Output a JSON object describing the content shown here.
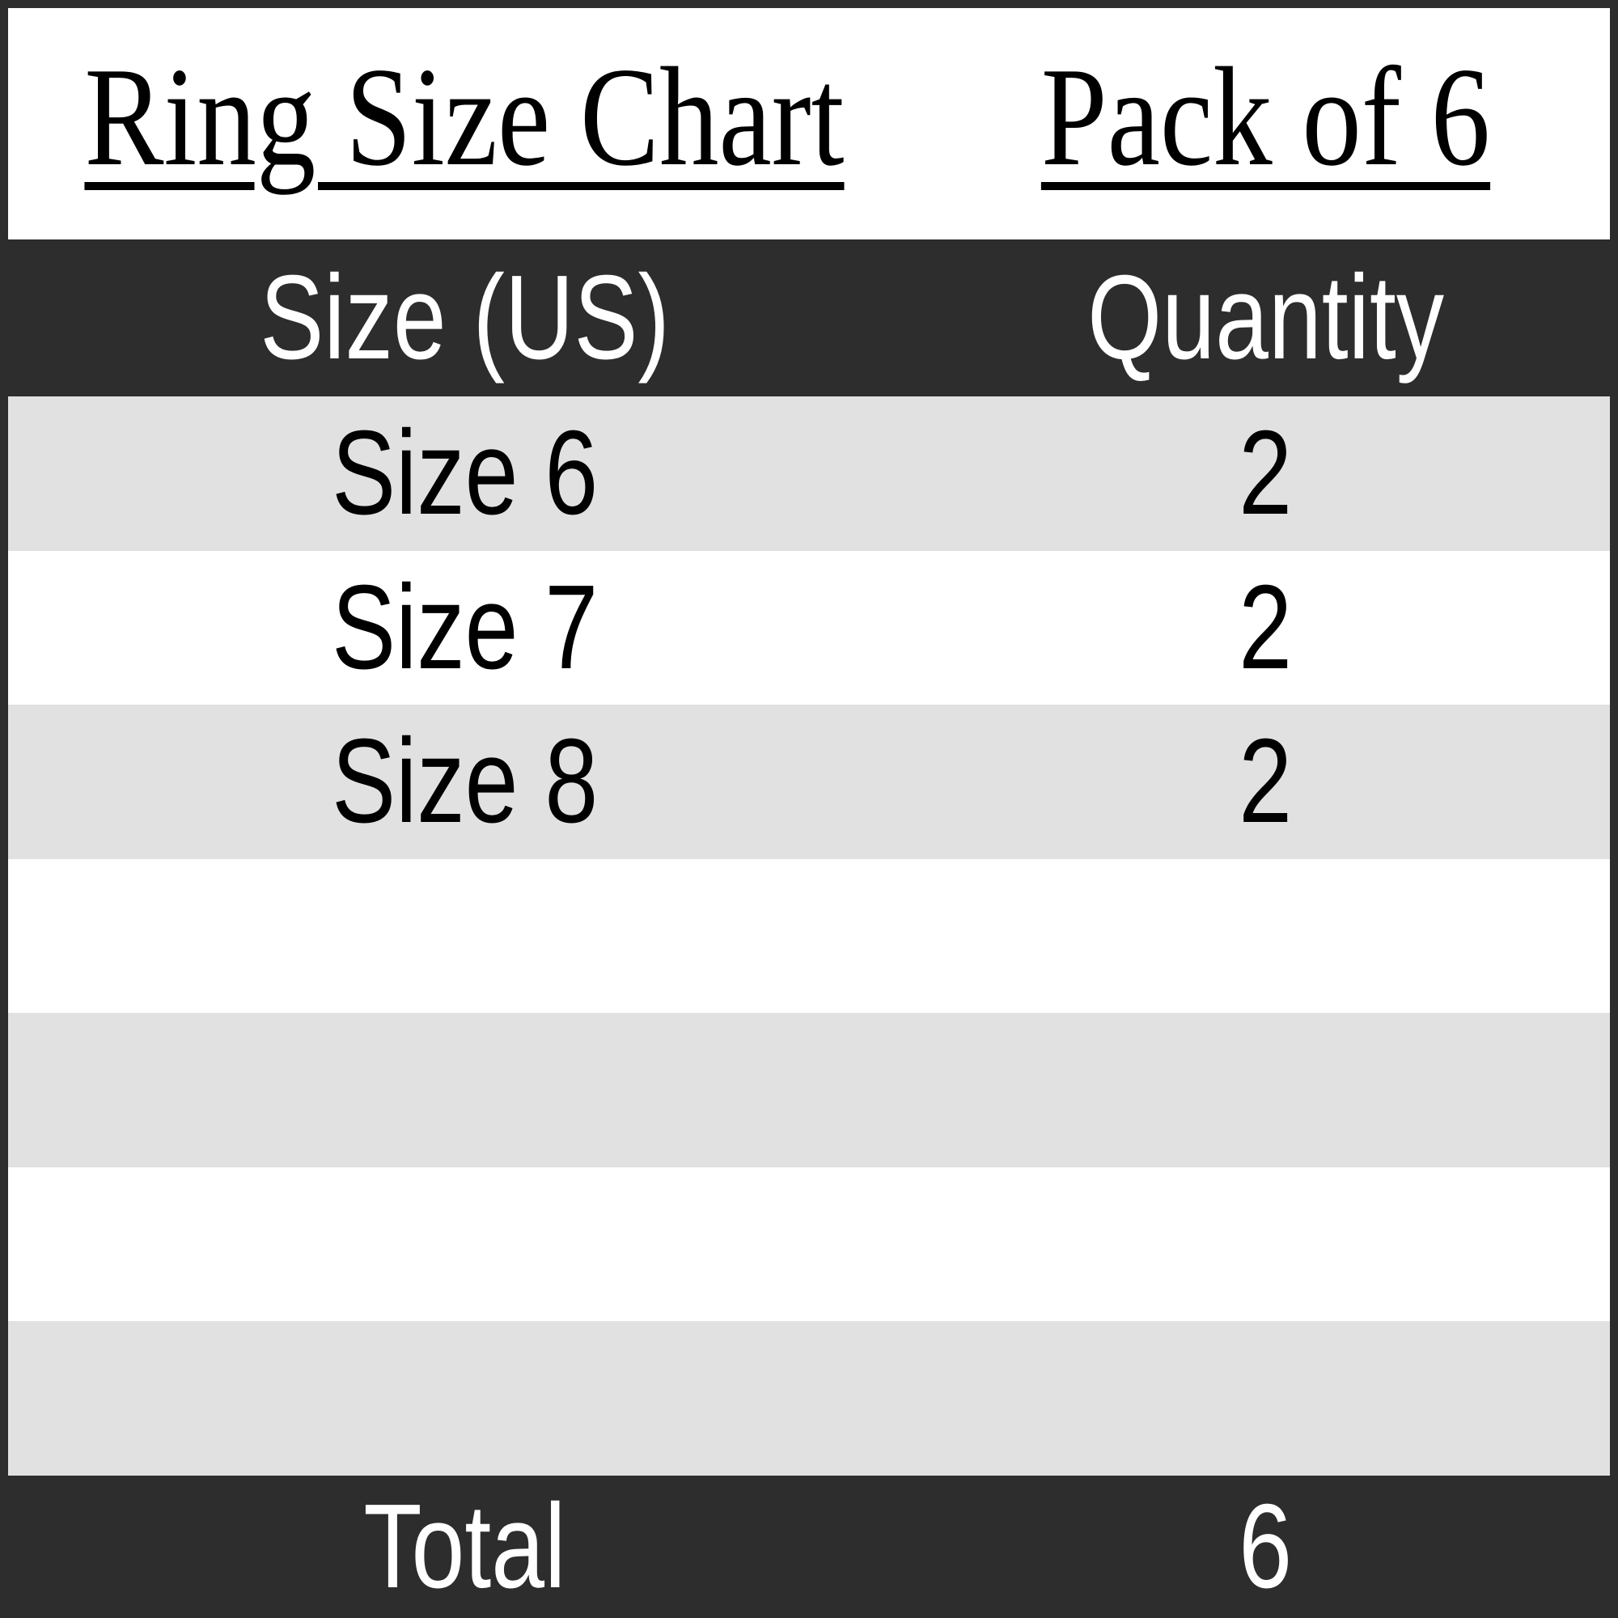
{
  "title_left": "Ring Size Chart",
  "title_right": "Pack of 6",
  "table": {
    "columns": [
      "Size (US)",
      "Quantity"
    ],
    "rows": [
      {
        "size": "Size 6",
        "quantity": "2"
      },
      {
        "size": "Size 7",
        "quantity": "2"
      },
      {
        "size": "Size 8",
        "quantity": "2"
      },
      {
        "size": "",
        "quantity": ""
      },
      {
        "size": "",
        "quantity": ""
      },
      {
        "size": "",
        "quantity": ""
      },
      {
        "size": "",
        "quantity": ""
      }
    ],
    "total_label": "Total",
    "total_value": "6"
  },
  "colors": {
    "band_dark": "#2d2d2d",
    "stripe_gray": "#e1e1e1",
    "stripe_white": "#ffffff",
    "header_text": "#ffffff",
    "body_text": "#000000",
    "border": "#2d2d2d"
  },
  "chart_data": {
    "type": "table",
    "title": "Ring Size Chart",
    "subtitle": "Pack of 6",
    "columns": [
      "Size (US)",
      "Quantity"
    ],
    "rows": [
      [
        "Size 6",
        2
      ],
      [
        "Size 7",
        2
      ],
      [
        "Size 8",
        2
      ]
    ],
    "total": {
      "label": "Total",
      "value": 6
    }
  }
}
